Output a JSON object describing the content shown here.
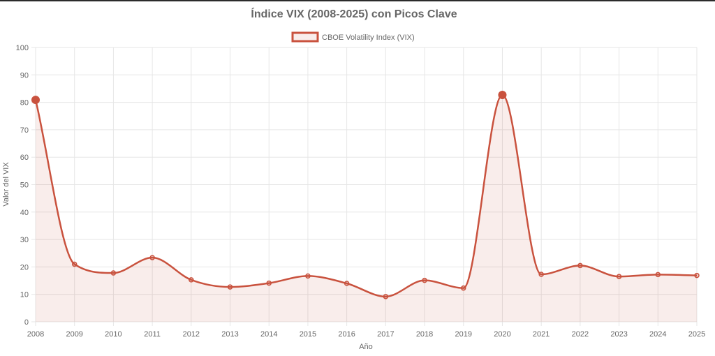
{
  "colors": {
    "line": "#c9523e",
    "fill": "rgba(201,82,62,0.1)",
    "grid": "#e6e6e6",
    "text": "#666666"
  },
  "chart_data": {
    "type": "line",
    "title": "Índice VIX (2008-2025) con Picos Clave",
    "xlabel": "Año",
    "ylabel": "Valor del VIX",
    "ylim": [
      0,
      100
    ],
    "yticks": [
      0,
      10,
      20,
      30,
      40,
      50,
      60,
      70,
      80,
      90,
      100
    ],
    "grid": true,
    "legend_position": "top-center",
    "categories": [
      "2008",
      "2009",
      "2010",
      "2011",
      "2012",
      "2013",
      "2014",
      "2015",
      "2016",
      "2017",
      "2018",
      "2019",
      "2020",
      "2021",
      "2022",
      "2023",
      "2024",
      "2025"
    ],
    "series": [
      {
        "name": "CBOE Volatility Index (VIX)",
        "values": [
          80.9,
          21.0,
          17.8,
          23.4,
          15.3,
          12.7,
          14.1,
          16.7,
          14.0,
          9.2,
          15.1,
          12.3,
          82.7,
          17.3,
          20.5,
          16.5,
          17.2,
          16.9
        ],
        "highlight_indices": [
          0,
          12
        ]
      }
    ]
  }
}
